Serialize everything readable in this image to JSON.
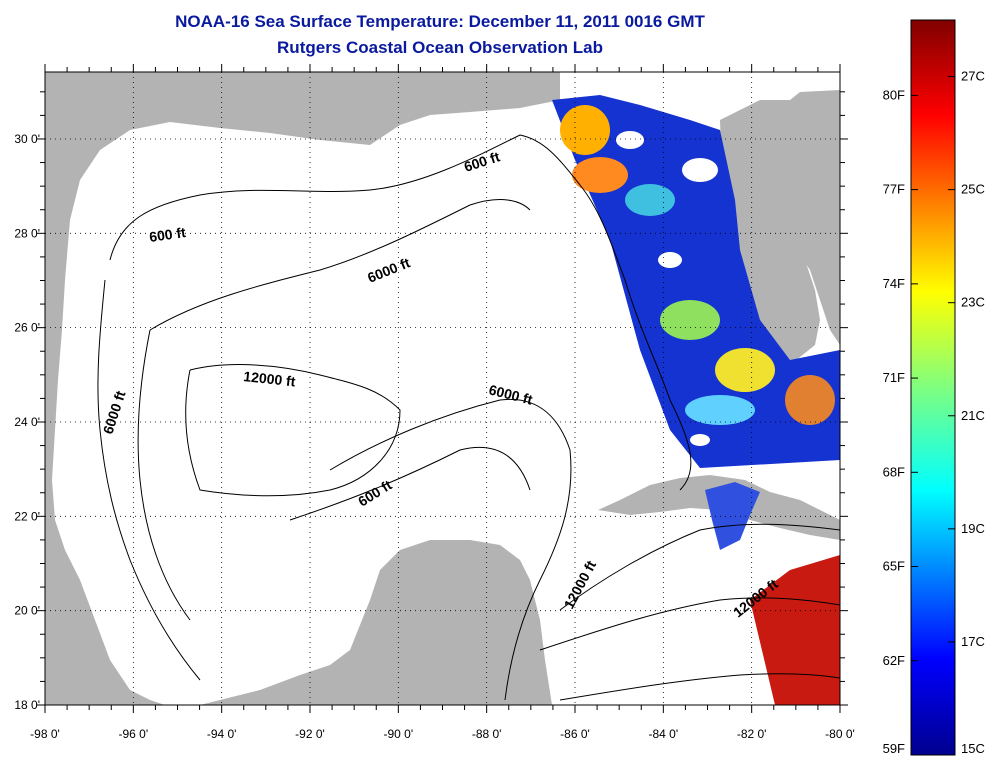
{
  "title_line1": "NOAA-16 Sea Surface Temperature:  December 11, 2011 0016 GMT",
  "title_line2": "Rutgers Coastal Ocean Observation Lab",
  "map": {
    "x_ticks": [
      "-98 0'",
      "-96 0'",
      "-94 0'",
      "-92 0'",
      "-90 0'",
      "-88 0'",
      "-86 0'",
      "-84 0'",
      "-82 0'",
      "-80 0'"
    ],
    "y_ticks": [
      "18 0'",
      "20 0'",
      "22 0'",
      "24 0'",
      "26 0'",
      "28 0'",
      "30 0'"
    ],
    "land_color": "#b3b3b3",
    "water_color": "#ffffff",
    "contour_labels": [
      "600 ft",
      "600 ft",
      "6000 ft",
      "12000 ft",
      "6000 ft",
      "6000 ft",
      "600 ft",
      "12000 ft",
      "12000 ft"
    ]
  },
  "colorbar": {
    "fahrenheit_labels": [
      "80F",
      "77F",
      "74F",
      "71F",
      "68F",
      "65F",
      "62F",
      "59F"
    ],
    "celsius_labels": [
      "27C",
      "25C",
      "23C",
      "21C",
      "19C",
      "17C",
      "15C"
    ]
  }
}
